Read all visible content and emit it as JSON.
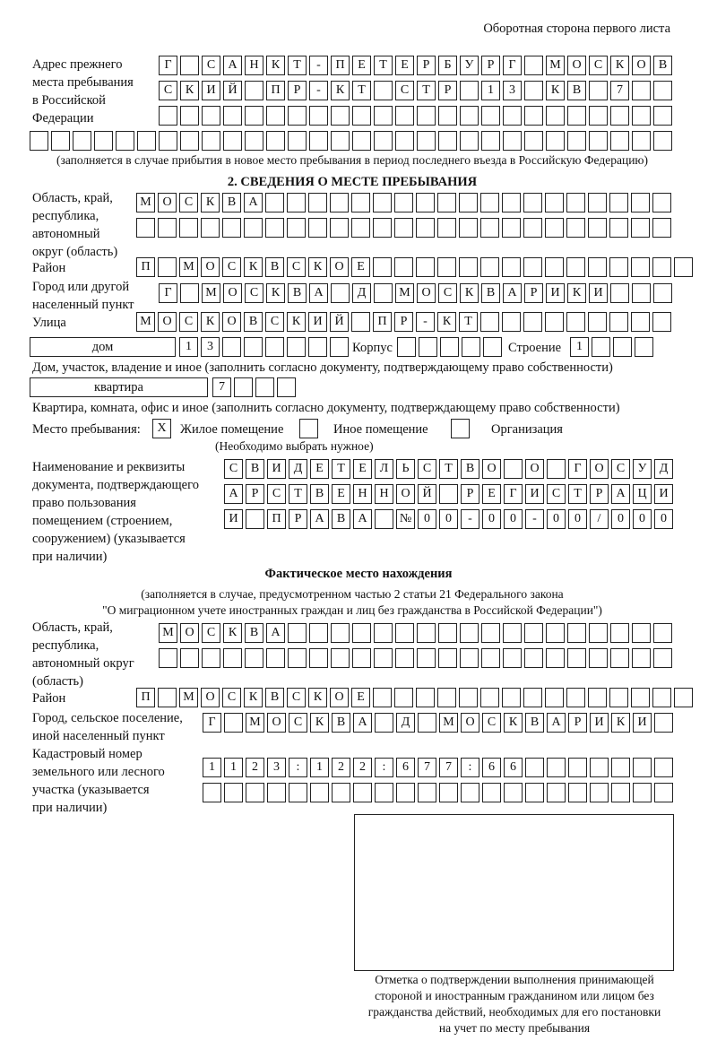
{
  "header": {
    "page_side": "Оборотная сторона первого листа"
  },
  "prev_address": {
    "label": [
      "Адрес прежнего",
      "места пребывания",
      "в Российской",
      "Федерации"
    ],
    "rows": [
      "Г САНКТ-ПЕТЕРБУРГ МОСКОВ",
      "СКИЙ ПР-КТ СТР 13 КВ 7  ",
      "                        ",
      "                              "
    ],
    "note": "(заполняется в случае прибытия в новое место пребывания в период последнего въезда в Российскую Федерацию)"
  },
  "section2": {
    "title": "2. СВЕДЕНИЯ О МЕСТЕ ПРЕБЫВАНИЯ",
    "region_label": [
      "Область, край,",
      "республика,",
      "автономный",
      "округ (область)"
    ],
    "region_rows": [
      "МОСКВА                   ",
      "                         "
    ],
    "district_label": "Район",
    "district_row": "П МОСКВСКОЕ               ",
    "city_label": [
      "Город или другой",
      "населенный пункт"
    ],
    "city_row": "Г МОСКВА Д МОСКВАРИКИ   ",
    "street_label": "Улица",
    "street_row": "МОСКОВСКИЙ ПР-КТ         ",
    "house_type": "дом",
    "house_row": "13      ",
    "korpus_label": "Корпус",
    "korpus_row": "     ",
    "building_label": "Строение",
    "building_row": "1   ",
    "house_note": "Дом, участок, владение и иное (заполнить согласно документу, подтверждающему право собственности)",
    "flat_type": "квартира",
    "flat_row": "7   ",
    "flat_note": "Квартира, комната, офис и иное (заполнить согласно документу, подтверждающему право собственности)",
    "stay_label": "Место пребывания:",
    "stay_options": [
      {
        "label": "Жилое помещение",
        "mark": "Х",
        "checked": true
      },
      {
        "label": "Иное помещение",
        "mark": "",
        "checked": false
      },
      {
        "label": "Организация",
        "mark": "",
        "checked": false
      }
    ],
    "stay_note": "(Необходимо выбрать нужное)",
    "doc_label": [
      "Наименование и реквизиты",
      "документа, подтверждающего",
      "право пользования",
      "помещением (строением,",
      "сооружением) (указывается",
      "при наличии)"
    ],
    "doc_rows": [
      "СВИДЕТЕЛЬСТВО О ГОСУД",
      "АРСТВЕННОЙ РЕГИСТРАЦИ",
      "И ПРАВА №00-00-00/000"
    ]
  },
  "actual": {
    "title": "Фактическое место нахождения",
    "note": [
      "(заполняется в случае, предусмотренном частью 2 статьи 21 Федерального закона",
      "\"О миграционном учете иностранных граждан и лиц без гражданства в Российской Федерации\")"
    ],
    "region_label": [
      "Область, край,",
      "республика,",
      "автономный округ",
      "(область)"
    ],
    "region_rows": [
      "МОСКВА                  ",
      "                        "
    ],
    "district_label": "Район",
    "district_row": "П МОСКВСКОЕ               ",
    "city_label": [
      "Город, сельское поселение,",
      "иной населенный пункт"
    ],
    "city_row": "Г МОСКВА Д МОСКВАРИКИ ",
    "cadastre_label": [
      "Кадастровый номер",
      "земельного или лесного",
      "участка (указывается",
      "при наличии)"
    ],
    "cadastre_rows": [
      "1123:122:677:66       ",
      "                      "
    ]
  },
  "confirmation": {
    "caption": [
      "Отметка о подтверждении выполнения принимающей",
      "стороной и иностранным гражданином или лицом без",
      "гражданства действий, необходимых для его постановки",
      "на учет по месту пребывания"
    ]
  }
}
